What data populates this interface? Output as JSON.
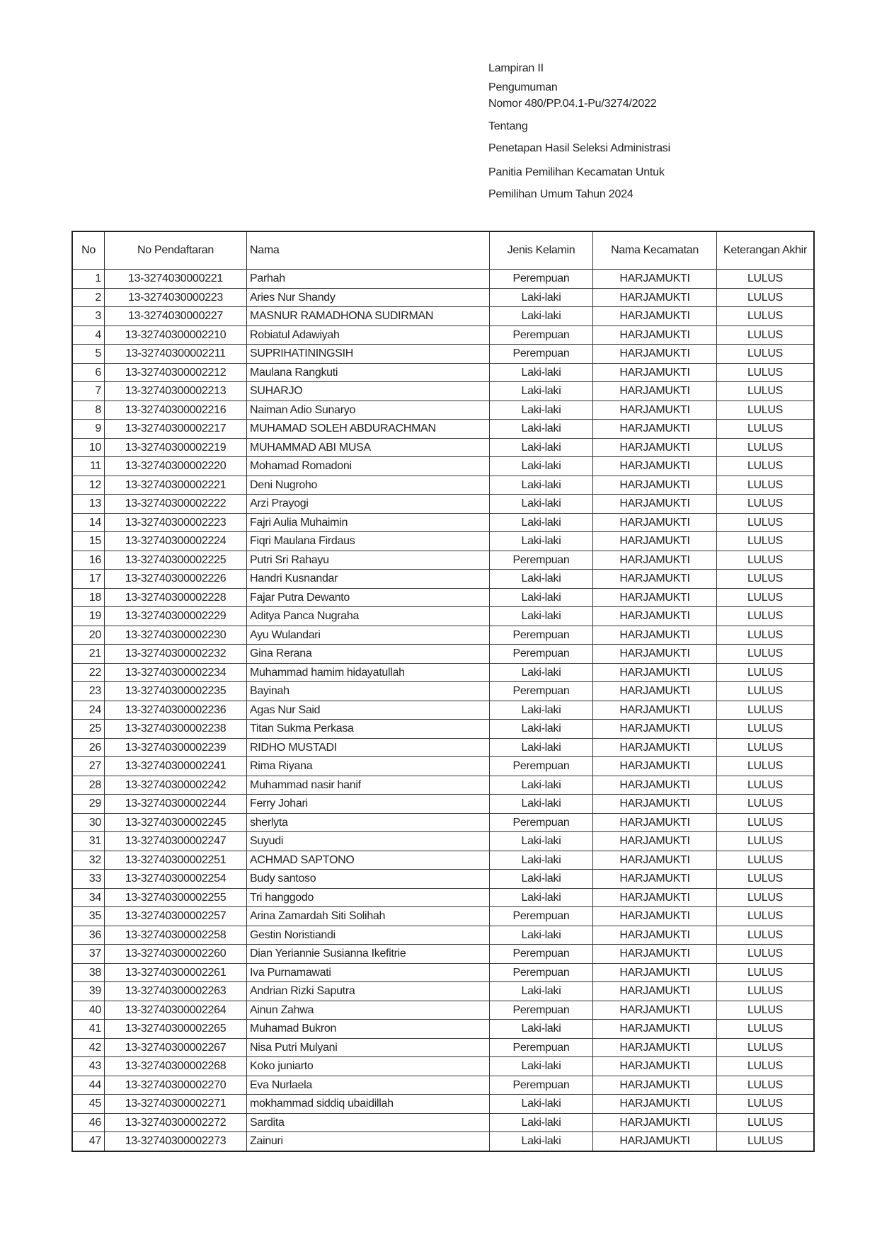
{
  "header": {
    "lines": [
      "Lampiran II",
      "Pengumuman",
      "Nomor 480/PP.04.1-Pu/3274/2022",
      "Tentang",
      "Penetapan Hasil Seleksi Administrasi",
      "Panitia Pemilihan Kecamatan Untuk",
      "Pemilihan Umum Tahun 2024"
    ]
  },
  "table": {
    "columns": [
      "No",
      "No Pendaftaran",
      "Nama",
      "Jenis Kelamin",
      "Nama Kecamatan",
      "Keterangan Akhir"
    ],
    "rows": [
      [
        "1",
        "13-3274030000221",
        "Parhah",
        "Perempuan",
        "HARJAMUKTI",
        "LULUS"
      ],
      [
        "2",
        "13-3274030000223",
        "Aries Nur Shandy",
        "Laki-laki",
        "HARJAMUKTI",
        "LULUS"
      ],
      [
        "3",
        "13-3274030000227",
        "MASNUR RAMADHONA SUDIRMAN",
        "Laki-laki",
        "HARJAMUKTI",
        "LULUS"
      ],
      [
        "4",
        "13-32740300002210",
        "Robiatul Adawiyah",
        "Perempuan",
        "HARJAMUKTI",
        "LULUS"
      ],
      [
        "5",
        "13-32740300002211",
        "SUPRIHATININGSIH",
        "Perempuan",
        "HARJAMUKTI",
        "LULUS"
      ],
      [
        "6",
        "13-32740300002212",
        "Maulana Rangkuti",
        "Laki-laki",
        "HARJAMUKTI",
        "LULUS"
      ],
      [
        "7",
        "13-32740300002213",
        "SUHARJO",
        "Laki-laki",
        "HARJAMUKTI",
        "LULUS"
      ],
      [
        "8",
        "13-32740300002216",
        "Naiman Adio Sunaryo",
        "Laki-laki",
        "HARJAMUKTI",
        "LULUS"
      ],
      [
        "9",
        "13-32740300002217",
        "MUHAMAD SOLEH ABDURACHMAN",
        "Laki-laki",
        "HARJAMUKTI",
        "LULUS"
      ],
      [
        "10",
        "13-32740300002219",
        "MUHAMMAD ABI MUSA",
        "Laki-laki",
        "HARJAMUKTI",
        "LULUS"
      ],
      [
        "11",
        "13-32740300002220",
        "Mohamad Romadoni",
        "Laki-laki",
        "HARJAMUKTI",
        "LULUS"
      ],
      [
        "12",
        "13-32740300002221",
        "Deni Nugroho",
        "Laki-laki",
        "HARJAMUKTI",
        "LULUS"
      ],
      [
        "13",
        "13-32740300002222",
        "Arzi Prayogi",
        "Laki-laki",
        "HARJAMUKTI",
        "LULUS"
      ],
      [
        "14",
        "13-32740300002223",
        "Fajri Aulia Muhaimin",
        "Laki-laki",
        "HARJAMUKTI",
        "LULUS"
      ],
      [
        "15",
        "13-32740300002224",
        "Fiqri Maulana Firdaus",
        "Laki-laki",
        "HARJAMUKTI",
        "LULUS"
      ],
      [
        "16",
        "13-32740300002225",
        "Putri Sri Rahayu",
        "Perempuan",
        "HARJAMUKTI",
        "LULUS"
      ],
      [
        "17",
        "13-32740300002226",
        "Handri Kusnandar",
        "Laki-laki",
        "HARJAMUKTI",
        "LULUS"
      ],
      [
        "18",
        "13-32740300002228",
        "Fajar Putra Dewanto",
        "Laki-laki",
        "HARJAMUKTI",
        "LULUS"
      ],
      [
        "19",
        "13-32740300002229",
        "Aditya Panca Nugraha",
        "Laki-laki",
        "HARJAMUKTI",
        "LULUS"
      ],
      [
        "20",
        "13-32740300002230",
        "Ayu Wulandari",
        "Perempuan",
        "HARJAMUKTI",
        "LULUS"
      ],
      [
        "21",
        "13-32740300002232",
        "Gina Rerana",
        "Perempuan",
        "HARJAMUKTI",
        "LULUS"
      ],
      [
        "22",
        "13-32740300002234",
        "Muhammad hamim hidayatullah",
        "Laki-laki",
        "HARJAMUKTI",
        "LULUS"
      ],
      [
        "23",
        "13-32740300002235",
        "Bayinah",
        "Perempuan",
        "HARJAMUKTI",
        "LULUS"
      ],
      [
        "24",
        "13-32740300002236",
        "Agas Nur Said",
        "Laki-laki",
        "HARJAMUKTI",
        "LULUS"
      ],
      [
        "25",
        "13-32740300002238",
        "Titan Sukma Perkasa",
        "Laki-laki",
        "HARJAMUKTI",
        "LULUS"
      ],
      [
        "26",
        "13-32740300002239",
        "RIDHO MUSTADI",
        "Laki-laki",
        "HARJAMUKTI",
        "LULUS"
      ],
      [
        "27",
        "13-32740300002241",
        "Rima Riyana",
        "Perempuan",
        "HARJAMUKTI",
        "LULUS"
      ],
      [
        "28",
        "13-32740300002242",
        "Muhammad nasir hanif",
        "Laki-laki",
        "HARJAMUKTI",
        "LULUS"
      ],
      [
        "29",
        "13-32740300002244",
        "Ferry Johari",
        "Laki-laki",
        "HARJAMUKTI",
        "LULUS"
      ],
      [
        "30",
        "13-32740300002245",
        "sherlyta",
        "Perempuan",
        "HARJAMUKTI",
        "LULUS"
      ],
      [
        "31",
        "13-32740300002247",
        "Suyudi",
        "Laki-laki",
        "HARJAMUKTI",
        "LULUS"
      ],
      [
        "32",
        "13-32740300002251",
        "ACHMAD SAPTONO",
        "Laki-laki",
        "HARJAMUKTI",
        "LULUS"
      ],
      [
        "33",
        "13-32740300002254",
        "Budy santoso",
        "Laki-laki",
        "HARJAMUKTI",
        "LULUS"
      ],
      [
        "34",
        "13-32740300002255",
        "Tri hanggodo",
        "Laki-laki",
        "HARJAMUKTI",
        "LULUS"
      ],
      [
        "35",
        "13-32740300002257",
        "Arina Zamardah Siti Solihah",
        "Perempuan",
        "HARJAMUKTI",
        "LULUS"
      ],
      [
        "36",
        "13-32740300002258",
        "Gestin Noristiandi",
        "Laki-laki",
        "HARJAMUKTI",
        "LULUS"
      ],
      [
        "37",
        "13-32740300002260",
        "Dian Yeriannie Susianna Ikefitrie",
        "Perempuan",
        "HARJAMUKTI",
        "LULUS"
      ],
      [
        "38",
        "13-32740300002261",
        "Iva Purnamawati",
        "Perempuan",
        "HARJAMUKTI",
        "LULUS"
      ],
      [
        "39",
        "13-32740300002263",
        "Andrian Rizki Saputra",
        "Laki-laki",
        "HARJAMUKTI",
        "LULUS"
      ],
      [
        "40",
        "13-32740300002264",
        "Ainun Zahwa",
        "Perempuan",
        "HARJAMUKTI",
        "LULUS"
      ],
      [
        "41",
        "13-32740300002265",
        "Muhamad Bukron",
        "Laki-laki",
        "HARJAMUKTI",
        "LULUS"
      ],
      [
        "42",
        "13-32740300002267",
        "Nisa Putri Mulyani",
        "Perempuan",
        "HARJAMUKTI",
        "LULUS"
      ],
      [
        "43",
        "13-32740300002268",
        "Koko juniarto",
        "Laki-laki",
        "HARJAMUKTI",
        "LULUS"
      ],
      [
        "44",
        "13-32740300002270",
        "Eva Nurlaela",
        "Perempuan",
        "HARJAMUKTI",
        "LULUS"
      ],
      [
        "45",
        "13-32740300002271",
        "mokhammad siddiq ubaidillah",
        "Laki-laki",
        "HARJAMUKTI",
        "LULUS"
      ],
      [
        "46",
        "13-32740300002272",
        "Sardita",
        "Laki-laki",
        "HARJAMUKTI",
        "LULUS"
      ],
      [
        "47",
        "13-32740300002273",
        "Zainuri",
        "Laki-laki",
        "HARJAMUKTI",
        "LULUS"
      ]
    ]
  }
}
